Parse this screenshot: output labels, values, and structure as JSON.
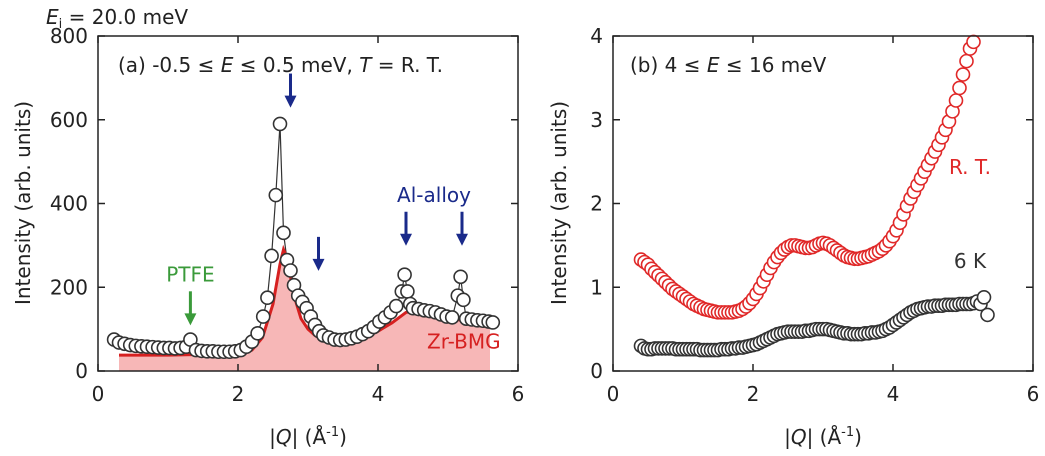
{
  "figure": {
    "header": {
      "prefix": "E",
      "subscript": "i",
      "suffix": " = 20.0 meV"
    }
  },
  "chart_data": [
    {
      "type": "scatter",
      "panel_title": {
        "text": "(a) -0.5 ≤ E ≤ 0.5 meV, T = R. T.",
        "parts": [
          "(a) -0.5 ≤ ",
          "E",
          " ≤ 0.5 meV, ",
          "T",
          " = R. T."
        ]
      },
      "xlabel": "|Q| (Å-1)",
      "ylabel": "Intensity (arb. units)",
      "xlim": [
        0,
        6
      ],
      "ylim": [
        0,
        800
      ],
      "xticks": [
        0,
        2,
        4,
        6
      ],
      "yticks": [
        0,
        200,
        400,
        600,
        800
      ],
      "colors": {
        "markers": "#333333",
        "fit_line": "#d62020",
        "fit_fill": "#f7b7b7",
        "ptfe": "#3a9a3a",
        "al_alloy": "#1a2a8a"
      },
      "series": [
        {
          "role": "data",
          "x": [
            0.23,
            0.3,
            0.38,
            0.46,
            0.54,
            0.62,
            0.7,
            0.78,
            0.86,
            0.94,
            1.02,
            1.1,
            1.18,
            1.26,
            1.32,
            1.4,
            1.48,
            1.56,
            1.64,
            1.72,
            1.8,
            1.88,
            1.96,
            2.04,
            2.12,
            2.2,
            2.28,
            2.36,
            2.42,
            2.48,
            2.54,
            2.6,
            2.65,
            2.7,
            2.75,
            2.8,
            2.86,
            2.92,
            2.98,
            3.04,
            3.1,
            3.16,
            3.22,
            3.3,
            3.38,
            3.46,
            3.54,
            3.62,
            3.7,
            3.78,
            3.86,
            3.94,
            4.02,
            4.1,
            4.18,
            4.26,
            4.34,
            4.38,
            4.42,
            4.46,
            4.5,
            4.58,
            4.66,
            4.74,
            4.82,
            4.9,
            4.98,
            5.06,
            5.14,
            5.18,
            5.22,
            5.26,
            5.34,
            5.42,
            5.5,
            5.58,
            5.64
          ],
          "y": [
            75,
            68,
            65,
            62,
            60,
            59,
            58,
            57,
            56,
            55,
            55,
            54,
            55,
            58,
            75,
            50,
            48,
            47,
            47,
            46,
            46,
            46,
            47,
            50,
            58,
            70,
            90,
            130,
            175,
            275,
            420,
            590,
            330,
            265,
            240,
            205,
            180,
            165,
            150,
            130,
            110,
            95,
            85,
            80,
            75,
            74,
            75,
            78,
            82,
            88,
            95,
            105,
            118,
            128,
            140,
            155,
            190,
            230,
            190,
            160,
            150,
            148,
            145,
            143,
            140,
            135,
            130,
            128,
            180,
            225,
            170,
            125,
            123,
            121,
            120,
            118,
            116
          ]
        },
        {
          "role": "fit",
          "x": [
            0.3,
            1.0,
            1.6,
            2.0,
            2.2,
            2.35,
            2.5,
            2.6,
            2.65,
            2.7,
            2.8,
            2.9,
            3.0,
            3.1,
            3.2,
            3.3,
            3.45,
            3.6,
            3.8,
            4.0,
            4.2,
            4.4,
            4.6,
            4.8,
            5.0,
            5.2,
            5.4,
            5.6
          ],
          "y": [
            38,
            38,
            40,
            42,
            50,
            80,
            160,
            255,
            290,
            270,
            180,
            125,
            100,
            85,
            75,
            70,
            68,
            70,
            80,
            95,
            115,
            140,
            145,
            140,
            130,
            120,
            110,
            105
          ]
        }
      ],
      "annotations": [
        {
          "label": "PTFE",
          "x": 1.32,
          "arrow_y": 90
        },
        {
          "label": "",
          "x": 2.75,
          "arrow_y": 610
        },
        {
          "label": "",
          "x": 3.15,
          "arrow_y": 220
        },
        {
          "label": "Al-alloy",
          "x": 4.4,
          "arrow_y": 280
        },
        {
          "label": "",
          "x": 5.2,
          "arrow_y": 280
        },
        {
          "label": "Zr-BMG",
          "x": 4.7,
          "y": 40
        }
      ]
    },
    {
      "type": "scatter",
      "panel_title": {
        "text": "(b) 4 ≤ E ≤ 16 meV",
        "parts": [
          "(b) 4 ≤ ",
          "E",
          " ≤ 16 meV"
        ]
      },
      "xlabel": "|Q| (Å-1)",
      "ylabel": "Intensity (arb. units)",
      "xlim": [
        0,
        6
      ],
      "ylim": [
        0,
        4
      ],
      "xticks": [
        0,
        2,
        4,
        6
      ],
      "yticks": [
        0,
        1,
        2,
        3,
        4
      ],
      "colors": {
        "rt": "#e02828",
        "low_t": "#333333"
      },
      "series": [
        {
          "name": "R. T.",
          "x": [
            0.4,
            0.45,
            0.5,
            0.55,
            0.6,
            0.65,
            0.7,
            0.75,
            0.8,
            0.85,
            0.9,
            0.95,
            1.0,
            1.05,
            1.1,
            1.15,
            1.2,
            1.25,
            1.3,
            1.35,
            1.4,
            1.45,
            1.5,
            1.55,
            1.6,
            1.65,
            1.7,
            1.75,
            1.8,
            1.85,
            1.9,
            1.95,
            2.0,
            2.05,
            2.1,
            2.15,
            2.2,
            2.25,
            2.3,
            2.35,
            2.4,
            2.45,
            2.5,
            2.55,
            2.6,
            2.65,
            2.7,
            2.75,
            2.8,
            2.85,
            2.9,
            2.95,
            3.0,
            3.05,
            3.1,
            3.15,
            3.2,
            3.25,
            3.3,
            3.35,
            3.4,
            3.45,
            3.5,
            3.55,
            3.6,
            3.65,
            3.7,
            3.75,
            3.8,
            3.85,
            3.9,
            3.95,
            4.0,
            4.05,
            4.1,
            4.15,
            4.2,
            4.25,
            4.3,
            4.35,
            4.4,
            4.45,
            4.5,
            4.55,
            4.6,
            4.65,
            4.7,
            4.75,
            4.8,
            4.85,
            4.9,
            4.95,
            5.0,
            5.05,
            5.1,
            5.15
          ],
          "y": [
            1.33,
            1.3,
            1.27,
            1.22,
            1.18,
            1.14,
            1.1,
            1.06,
            1.02,
            0.98,
            0.95,
            0.92,
            0.89,
            0.86,
            0.83,
            0.8,
            0.78,
            0.76,
            0.74,
            0.73,
            0.72,
            0.71,
            0.7,
            0.7,
            0.7,
            0.7,
            0.7,
            0.71,
            0.72,
            0.74,
            0.77,
            0.81,
            0.86,
            0.92,
            0.99,
            1.07,
            1.15,
            1.23,
            1.3,
            1.36,
            1.41,
            1.45,
            1.48,
            1.5,
            1.5,
            1.49,
            1.48,
            1.47,
            1.47,
            1.48,
            1.5,
            1.52,
            1.53,
            1.52,
            1.5,
            1.47,
            1.44,
            1.41,
            1.38,
            1.36,
            1.35,
            1.34,
            1.34,
            1.35,
            1.36,
            1.37,
            1.39,
            1.41,
            1.43,
            1.46,
            1.5,
            1.55,
            1.61,
            1.68,
            1.77,
            1.87,
            1.97,
            2.06,
            2.14,
            2.22,
            2.3,
            2.38,
            2.46,
            2.54,
            2.62,
            2.7,
            2.79,
            2.88,
            2.98,
            3.1,
            3.23,
            3.38,
            3.54,
            3.7,
            3.85,
            3.93
          ]
        },
        {
          "name": "6 K",
          "x": [
            0.4,
            0.45,
            0.5,
            0.55,
            0.6,
            0.65,
            0.7,
            0.75,
            0.8,
            0.85,
            0.9,
            0.95,
            1.0,
            1.05,
            1.1,
            1.15,
            1.2,
            1.25,
            1.3,
            1.35,
            1.4,
            1.45,
            1.5,
            1.55,
            1.6,
            1.65,
            1.7,
            1.75,
            1.8,
            1.85,
            1.9,
            1.95,
            2.0,
            2.05,
            2.1,
            2.15,
            2.2,
            2.25,
            2.3,
            2.35,
            2.4,
            2.45,
            2.5,
            2.55,
            2.6,
            2.65,
            2.7,
            2.75,
            2.8,
            2.85,
            2.9,
            2.95,
            3.0,
            3.05,
            3.1,
            3.15,
            3.2,
            3.25,
            3.3,
            3.35,
            3.4,
            3.45,
            3.5,
            3.55,
            3.6,
            3.65,
            3.7,
            3.75,
            3.8,
            3.85,
            3.9,
            3.95,
            4.0,
            4.05,
            4.1,
            4.15,
            4.2,
            4.25,
            4.3,
            4.35,
            4.4,
            4.45,
            4.5,
            4.55,
            4.6,
            4.65,
            4.7,
            4.75,
            4.8,
            4.85,
            4.9,
            4.95,
            5.0,
            5.05,
            5.1,
            5.15,
            5.2,
            5.25,
            5.3,
            5.35
          ],
          "y": [
            0.3,
            0.27,
            0.26,
            0.26,
            0.27,
            0.27,
            0.27,
            0.27,
            0.27,
            0.27,
            0.26,
            0.26,
            0.26,
            0.26,
            0.26,
            0.26,
            0.26,
            0.25,
            0.25,
            0.25,
            0.25,
            0.25,
            0.25,
            0.26,
            0.26,
            0.26,
            0.27,
            0.27,
            0.28,
            0.28,
            0.29,
            0.3,
            0.31,
            0.32,
            0.34,
            0.36,
            0.38,
            0.4,
            0.42,
            0.44,
            0.45,
            0.46,
            0.47,
            0.47,
            0.47,
            0.47,
            0.47,
            0.48,
            0.48,
            0.49,
            0.5,
            0.5,
            0.5,
            0.5,
            0.49,
            0.48,
            0.47,
            0.46,
            0.45,
            0.45,
            0.44,
            0.44,
            0.44,
            0.44,
            0.45,
            0.45,
            0.46,
            0.46,
            0.47,
            0.48,
            0.5,
            0.52,
            0.55,
            0.58,
            0.61,
            0.64,
            0.67,
            0.7,
            0.72,
            0.74,
            0.75,
            0.76,
            0.77,
            0.77,
            0.78,
            0.78,
            0.78,
            0.79,
            0.79,
            0.79,
            0.79,
            0.8,
            0.8,
            0.8,
            0.8,
            0.81,
            0.83,
            0.8,
            0.88,
            0.67
          ]
        }
      ],
      "annotations": [
        {
          "label": "R. T.",
          "x": 5.1,
          "y": 2.35
        },
        {
          "label": "6 K",
          "x": 5.1,
          "y": 1.23
        }
      ]
    }
  ]
}
